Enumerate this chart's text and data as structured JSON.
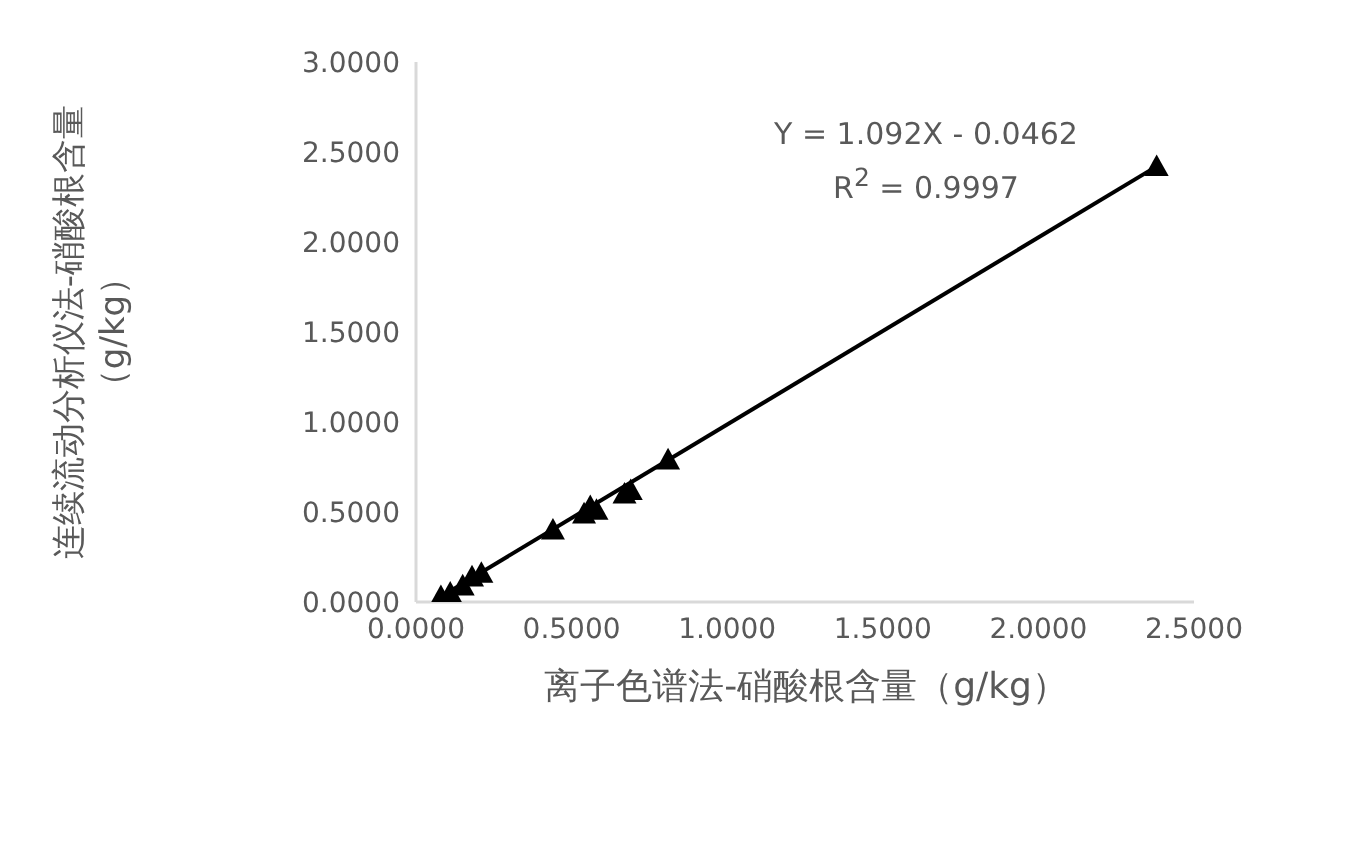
{
  "chart_data": {
    "type": "scatter",
    "xlabel": "离子色谱法-硝酸根含量（g/kg）",
    "ylabel": "连续流动分析仪法-硝酸根含量（g/kg）",
    "xlim": [
      0,
      2.5
    ],
    "xticks": [
      {
        "value": 0,
        "label": "0.0000"
      },
      {
        "value": 0.5,
        "label": "0.5000"
      },
      {
        "value": 1,
        "label": "1.0000"
      },
      {
        "value": 1.5,
        "label": "1.5000"
      },
      {
        "value": 2,
        "label": "2.0000"
      },
      {
        "value": 2.5,
        "label": "2.5000"
      }
    ],
    "ylim": [
      0,
      3
    ],
    "yticks": [
      {
        "value": 0,
        "label": "0.0000"
      },
      {
        "value": 0.5,
        "label": "0.5000"
      },
      {
        "value": 1,
        "label": "1.0000"
      },
      {
        "value": 1.5,
        "label": "1.5000"
      },
      {
        "value": 2,
        "label": "2.0000"
      },
      {
        "value": 2.5,
        "label": "2.5000"
      },
      {
        "value": 3,
        "label": "3.0000"
      }
    ],
    "marker": "triangle",
    "series": [
      {
        "color": "#000000",
        "x": [
          0.08,
          0.11,
          0.15,
          0.18,
          0.21,
          0.44,
          0.54,
          0.56,
          0.58,
          0.67,
          0.69,
          0.81,
          2.38
        ],
        "values": [
          0.03,
          0.05,
          0.09,
          0.14,
          0.16,
          0.4,
          0.49,
          0.53,
          0.51,
          0.6,
          0.62,
          0.79,
          2.42
        ]
      },
      {
        "type": "line",
        "color": "#000000",
        "marker": "none",
        "x": [
          0.08,
          2.38
        ],
        "values": [
          0.03,
          2.42
        ]
      }
    ],
    "annotations": [
      "Y = 1.092X - 0.0462",
      "R$^{2}$ = 0.9997"
    ]
  }
}
